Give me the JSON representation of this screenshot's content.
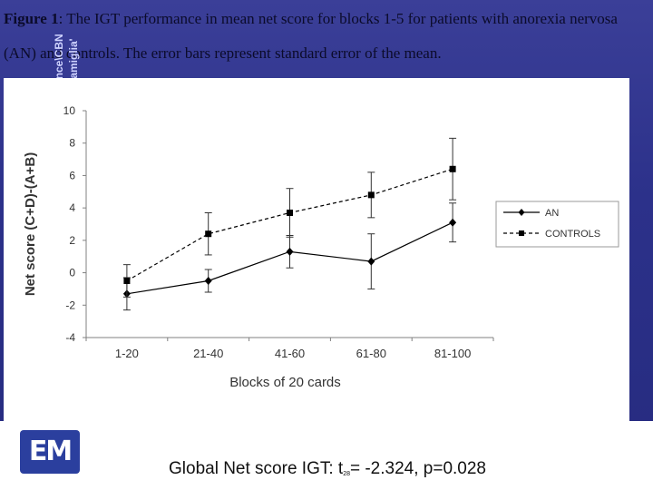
{
  "caption": {
    "figure_label": "Figure 1",
    "text_line1": ": The IGT performance in mean net score for blocks 1-5 for patients with anorexia nervosa",
    "text_line2": "(AN) and controls. The error bars represent standard error of the mean."
  },
  "side_text": {
    "col1": "ence\\CBN",
    "col2": "Famiglia'"
  },
  "chart_data": {
    "type": "line",
    "categories": [
      "1-20",
      "21-40",
      "41-60",
      "61-80",
      "81-100"
    ],
    "series": [
      {
        "name": "AN",
        "values": [
          -1.3,
          -0.5,
          1.3,
          0.7,
          3.1
        ],
        "errors": [
          1.0,
          0.7,
          1.0,
          1.7,
          1.2
        ],
        "marker": "diamond",
        "line": "solid",
        "color": "#000000"
      },
      {
        "name": "CONTROLS",
        "values": [
          -0.5,
          2.4,
          3.7,
          4.8,
          6.4
        ],
        "errors": [
          1.0,
          1.3,
          1.5,
          1.4,
          1.9
        ],
        "marker": "square",
        "line": "dashed",
        "color": "#000000"
      }
    ],
    "xlabel": "Blocks of 20 cards",
    "ylabel": "Net score (C+D)-(A+B)",
    "ylim": [
      -4,
      10
    ],
    "yticks": [
      "-4",
      "-2",
      "0",
      "2",
      "4",
      "6",
      "8",
      "10"
    ],
    "grid": false,
    "legend": "right"
  },
  "footer": {
    "logo_text": "EM",
    "stat_prefix": "Global Net score IGT: t",
    "stat_sub": "28",
    "stat_suffix": "= -2.324, p=0.028"
  }
}
